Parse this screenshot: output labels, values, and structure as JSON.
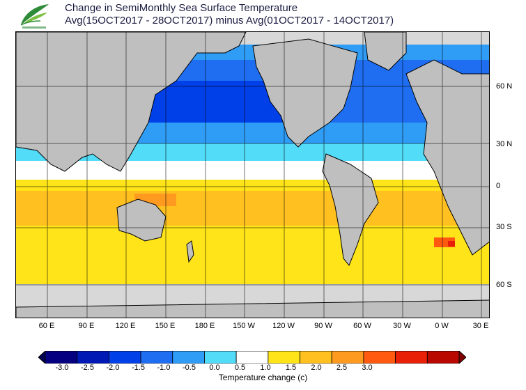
{
  "header": {
    "title_line1": "Change in SemiMonthly Sea Surface Temperature",
    "title_line2": "Avg(15OCT2017 - 28OCT2017) minus Avg(01OCT2017 - 14OCT2017)"
  },
  "logo": {
    "name": "agency-leaf-logo",
    "colors": [
      "#2e8b3a",
      "#7cc043"
    ]
  },
  "map": {
    "land_color": "#bfbfbf",
    "ice_color": "#dcdcdc",
    "longitude_labels": [
      "60 E",
      "90 E",
      "120 E",
      "150 E",
      "180 E",
      "150 W",
      "120 W",
      "90 W",
      "60 W",
      "30 W",
      "0 W",
      "30 E"
    ],
    "latitude_labels": [
      "60 N",
      "30 N",
      "0",
      "30 S",
      "60 S"
    ]
  },
  "colorbar": {
    "label": "Temperature change  (c)",
    "tick_labels": [
      "-3.0",
      "-2.5",
      "-2.0",
      "-1.5",
      "-1.0",
      "-0.5",
      "0.0",
      "0.5",
      "1.0",
      "1.5",
      "2.0",
      "2.5",
      "3.0"
    ],
    "colors": [
      "#050080",
      "#0018b4",
      "#0040e8",
      "#1f6ef2",
      "#2f9cf5",
      "#52dcf8",
      "#ffffff",
      "#ffe41a",
      "#ffc020",
      "#ff9a20",
      "#ff5a10",
      "#e82008",
      "#b80800"
    ],
    "under_color": "#020050",
    "over_color": "#800000"
  }
}
